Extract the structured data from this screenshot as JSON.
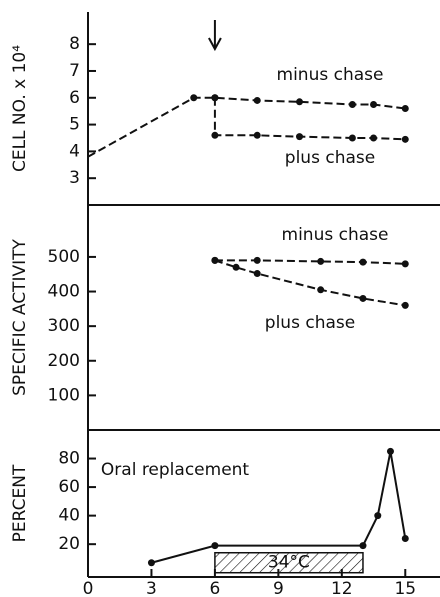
{
  "chart_data": [
    {
      "type": "line",
      "ylabel": "CELL NO. x 10⁴",
      "xlim": [
        0,
        16.5
      ],
      "ylim": [
        2,
        9.2
      ],
      "yticks": [
        3,
        4,
        5,
        6,
        7,
        8
      ],
      "series": [
        {
          "name": "minus chase",
          "color": "#111111",
          "x": [
            0,
            5,
            6,
            8,
            10,
            12.5,
            13.5,
            15
          ],
          "values": [
            3.8,
            6.0,
            6.0,
            5.9,
            5.85,
            5.75,
            5.75,
            5.6
          ]
        },
        {
          "name": "plus chase",
          "color": "#111111",
          "x": [
            6,
            6,
            8,
            10,
            12.5,
            13.5,
            15
          ],
          "values": [
            6.0,
            4.6,
            4.6,
            4.55,
            4.5,
            4.5,
            4.45
          ]
        }
      ]
    },
    {
      "type": "line",
      "ylabel": "SPECIFIC ACTIVITY",
      "xlim": [
        0,
        16.5
      ],
      "ylim": [
        0,
        650
      ],
      "yticks": [
        100,
        200,
        300,
        400,
        500
      ],
      "series": [
        {
          "name": "minus chase",
          "color": "#111111",
          "x": [
            6,
            8,
            11,
            13,
            15
          ],
          "values": [
            490,
            490,
            487,
            485,
            480
          ]
        },
        {
          "name": "plus chase",
          "color": "#111111",
          "x": [
            6,
            7,
            8,
            11,
            13,
            15
          ],
          "values": [
            490,
            470,
            452,
            405,
            380,
            360
          ]
        }
      ]
    },
    {
      "type": "line",
      "ylabel": "PERCENT",
      "annotation": "Oral replacement",
      "xlim": [
        0,
        16.5
      ],
      "ylim": [
        -3,
        100
      ],
      "yticks": [
        20,
        40,
        60,
        80
      ],
      "xticks": [
        0,
        3,
        6,
        9,
        12,
        15
      ],
      "hatched_region": {
        "xlim": [
          6,
          13
        ],
        "ylim": [
          0,
          14
        ],
        "label": "34°C"
      },
      "series": [
        {
          "color": "#111111",
          "x": [
            3,
            6,
            13,
            13.7,
            14.3,
            15
          ],
          "values": [
            7,
            19,
            19,
            40,
            85,
            24
          ]
        }
      ]
    }
  ]
}
